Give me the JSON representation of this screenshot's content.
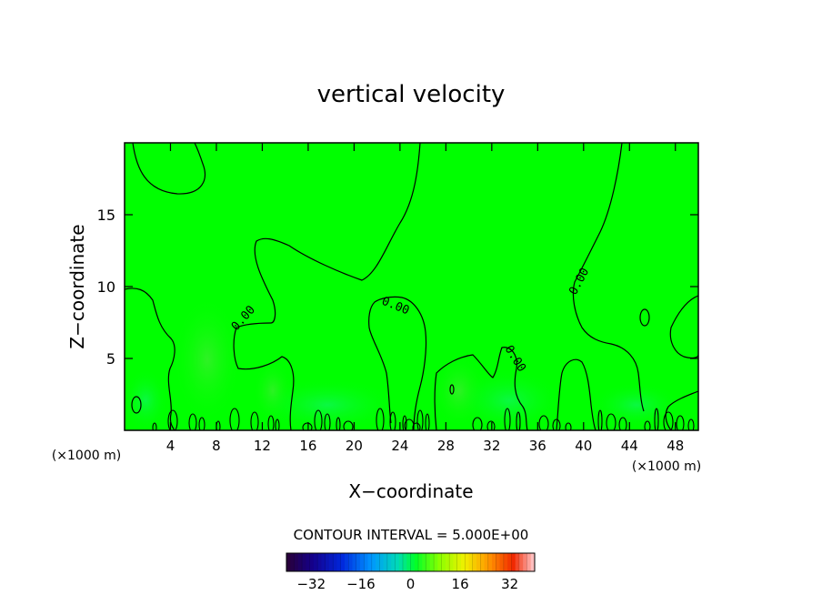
{
  "chart_data": {
    "type": "heatmap",
    "title": "vertical velocity",
    "xlabel": "X−coordinate",
    "ylabel": "Z−coordinate",
    "x_unit_left": "(×1000 m)",
    "x_unit_right": "(×1000 m)",
    "xlim": [
      0,
      50
    ],
    "ylim": [
      0,
      20
    ],
    "x_ticks": [
      4,
      8,
      12,
      16,
      20,
      24,
      28,
      32,
      36,
      40,
      44,
      48
    ],
    "y_ticks": [
      5,
      10,
      15
    ],
    "contour_label": "0.00",
    "contour_interval_text": "CONTOUR INTERVAL = 5.000E+00",
    "colorbar": {
      "min": -40,
      "max": 40,
      "ticks": [
        "−32",
        "−16",
        "0",
        "16",
        "32"
      ],
      "tick_values": [
        -32,
        -16,
        0,
        16,
        32
      ]
    },
    "field_color": "#00ff00",
    "grid": false
  }
}
